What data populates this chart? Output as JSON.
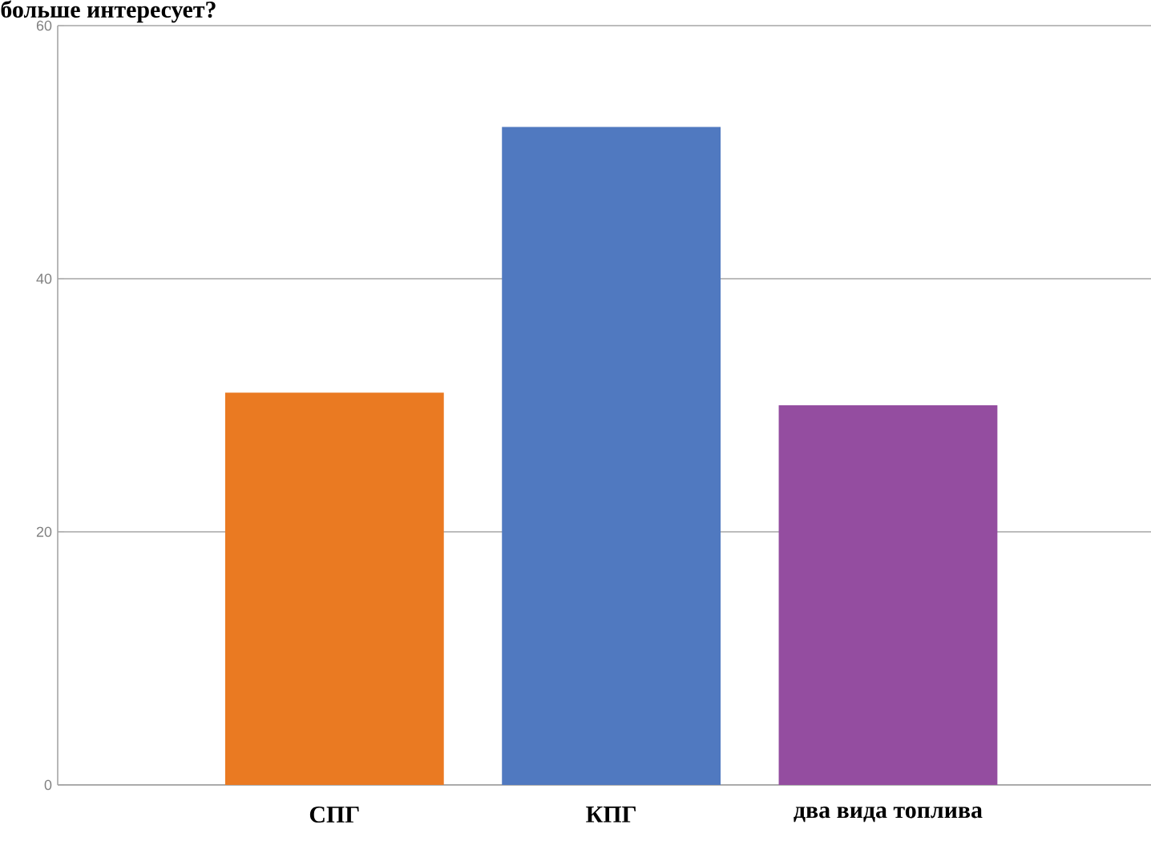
{
  "chart_data": {
    "type": "bar",
    "title": "больше интересует?",
    "categories": [
      "СПГ",
      "КПГ",
      "два вида топлива"
    ],
    "values": [
      31,
      52,
      30
    ],
    "colors": [
      "#ea7a22",
      "#5079c0",
      "#944da0"
    ],
    "ylim": [
      0,
      60
    ],
    "yticks": [
      0,
      20,
      40,
      60
    ],
    "grid": "y"
  }
}
